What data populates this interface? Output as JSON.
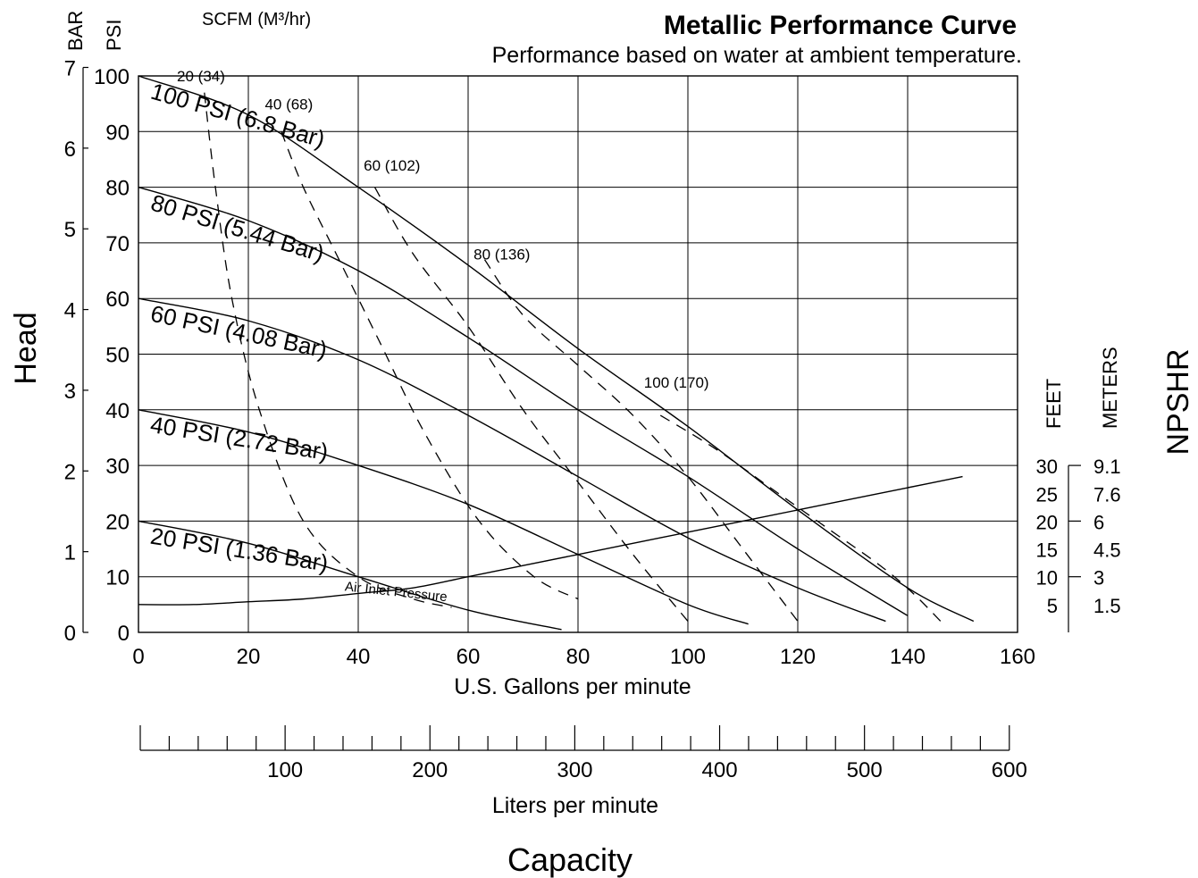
{
  "chart_data": {
    "type": "line",
    "title": "Metallic Performance Curve",
    "subtitle": "Performance based on water at ambient temperature.",
    "xlabel": "U.S. Gallons per minute",
    "xlabel2": "Liters per minute",
    "capacity_label": "Capacity",
    "head_label": "Head",
    "npshr_label": "NPSHR",
    "bar_label": "BAR",
    "psi_label": "PSI",
    "scfm_label": "SCFM (M³/hr)",
    "feet_label": "FEET",
    "meters_label": "METERS",
    "air_inlet_label": "Air Inlet Pressure",
    "xlim": [
      0,
      160
    ],
    "ylim": [
      0,
      100
    ],
    "x_ticks": [
      "0",
      "20",
      "40",
      "60",
      "80",
      "100",
      "120",
      "140",
      "160"
    ],
    "psi_ticks": [
      "0",
      "10",
      "20",
      "30",
      "40",
      "50",
      "60",
      "70",
      "80",
      "90",
      "100"
    ],
    "bar_ticks": [
      "0",
      "1",
      "2",
      "3",
      "4",
      "5",
      "6",
      "7"
    ],
    "lpm_ticks": [
      "100",
      "200",
      "300",
      "400",
      "500",
      "600"
    ],
    "npshr_feet_ticks": [
      "30",
      "25",
      "20",
      "15",
      "10",
      "5"
    ],
    "npshr_meter_ticks": [
      "9.1",
      "7.6",
      "6",
      "4.5",
      "3",
      "1.5"
    ],
    "grid": true,
    "pressure_curves": [
      {
        "name": "100 PSI (6.8 Bar)",
        "x": [
          0,
          20,
          40,
          60,
          80,
          100,
          120,
          140,
          152
        ],
        "y": [
          100,
          93,
          80,
          66,
          51,
          37,
          22,
          8,
          2
        ]
      },
      {
        "name": "80 PSI (5.44 Bar)",
        "x": [
          0,
          20,
          40,
          60,
          80,
          100,
          120,
          140
        ],
        "y": [
          80,
          74,
          65,
          53,
          40,
          28,
          15,
          3
        ]
      },
      {
        "name": "60 PSI (4.08 Bar)",
        "x": [
          0,
          20,
          40,
          60,
          80,
          100,
          120,
          136
        ],
        "y": [
          60,
          56,
          49,
          39,
          28,
          17,
          8,
          2
        ]
      },
      {
        "name": "40 PSI (2.72 Bar)",
        "x": [
          0,
          20,
          40,
          60,
          80,
          100,
          111
        ],
        "y": [
          40,
          36,
          30,
          23,
          14,
          5,
          1.5
        ]
      },
      {
        "name": "20 PSI (1.36 Bar)",
        "x": [
          0,
          20,
          40,
          60,
          77
        ],
        "y": [
          20,
          16,
          10,
          4,
          0.5
        ]
      }
    ],
    "scfm_curves": [
      {
        "name": "20 (34)",
        "x": [
          12,
          14,
          17,
          22,
          30,
          40,
          50,
          57
        ],
        "y": [
          97,
          80,
          60,
          40,
          20,
          10,
          6,
          4.5
        ]
      },
      {
        "name": "40 (68)",
        "x": [
          26,
          30,
          36,
          44,
          52,
          62,
          72,
          80
        ],
        "y": [
          90,
          80,
          68,
          52,
          36,
          20,
          10,
          6
        ]
      },
      {
        "name": "60 (102)",
        "x": [
          43,
          50,
          60,
          70,
          80,
          90,
          100
        ],
        "y": [
          80,
          68,
          55,
          40,
          27,
          14,
          2
        ]
      },
      {
        "name": "80 (136)",
        "x": [
          63,
          70,
          80,
          90,
          100,
          110,
          120
        ],
        "y": [
          67,
          57,
          48,
          39,
          28,
          15,
          2
        ]
      },
      {
        "name": "100 (170)",
        "x": [
          95,
          105,
          115,
          125,
          135,
          141,
          146
        ],
        "y": [
          39,
          33,
          26,
          19,
          12,
          7,
          2
        ]
      }
    ],
    "npshr_curve": {
      "x": [
        0,
        10,
        20,
        30,
        40,
        50,
        60,
        70,
        80,
        90,
        100,
        110,
        120,
        130,
        140,
        150
      ],
      "feet": [
        5,
        5,
        5.5,
        6,
        7,
        8,
        10,
        12,
        14,
        16,
        18,
        20,
        22,
        24,
        26,
        28
      ]
    }
  }
}
